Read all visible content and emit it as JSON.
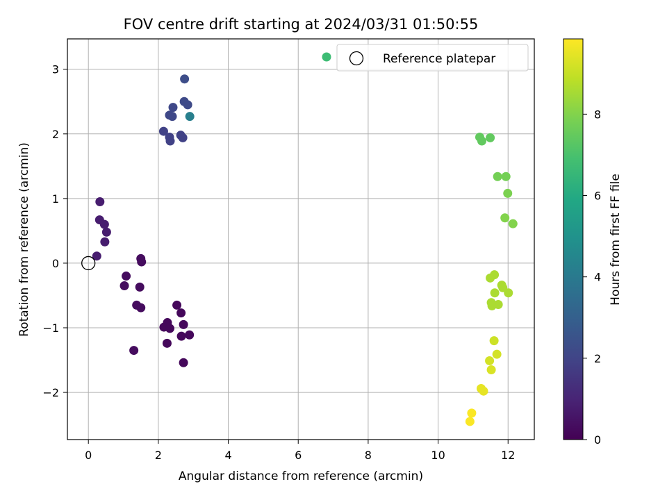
{
  "chart_data": {
    "type": "scatter",
    "title": "FOV centre drift starting at 2024/03/31 01:50:55",
    "xlabel": "Angular distance from reference (arcmin)",
    "ylabel": "Rotation from reference (arcmin)",
    "xlim": [
      -0.6,
      12.75
    ],
    "ylim": [
      -2.73,
      3.47
    ],
    "xticks": [
      0,
      2,
      4,
      6,
      8,
      10,
      12
    ],
    "yticks": [
      -2,
      -1,
      0,
      1,
      2,
      3
    ],
    "xtick_labels": [
      "0",
      "2",
      "4",
      "6",
      "8",
      "10",
      "12"
    ],
    "ytick_labels": [
      "−2",
      "−1",
      "0",
      "1",
      "2",
      "3"
    ],
    "grid": true,
    "colorbar": {
      "label": "Hours from first FF file",
      "range": [
        0,
        9.85
      ],
      "ticks": [
        0,
        2,
        4,
        6,
        8
      ],
      "tick_labels": [
        "0",
        "2",
        "4",
        "6",
        "8"
      ],
      "colormap": "viridis"
    },
    "legend": {
      "position": "top-right",
      "entries": [
        {
          "label": "",
          "marker": "filled-circle",
          "color": "#3dbc74"
        },
        {
          "label": "Reference platepar",
          "marker": "open-circle",
          "color": "#000000"
        }
      ]
    },
    "reference_point": {
      "x": 0,
      "y": 0,
      "label": "Reference platepar"
    },
    "points": [
      {
        "x": 0.33,
        "y": 0.95,
        "hours": 0.8
      },
      {
        "x": 0.32,
        "y": 0.67,
        "hours": 0.8
      },
      {
        "x": 0.46,
        "y": 0.6,
        "hours": 0.8
      },
      {
        "x": 0.52,
        "y": 0.48,
        "hours": 0.8
      },
      {
        "x": 0.47,
        "y": 0.33,
        "hours": 0.8
      },
      {
        "x": 0.24,
        "y": 0.11,
        "hours": 0.8
      },
      {
        "x": 1.5,
        "y": 0.07,
        "hours": 0.3
      },
      {
        "x": 1.52,
        "y": 0.02,
        "hours": 0.3
      },
      {
        "x": 1.08,
        "y": -0.2,
        "hours": 0.3
      },
      {
        "x": 1.03,
        "y": -0.35,
        "hours": 0.3
      },
      {
        "x": 1.47,
        "y": -0.37,
        "hours": 0.3
      },
      {
        "x": 1.38,
        "y": -0.65,
        "hours": 0.3
      },
      {
        "x": 1.5,
        "y": -0.69,
        "hours": 0.3
      },
      {
        "x": 1.3,
        "y": -1.35,
        "hours": 0.3
      },
      {
        "x": 2.53,
        "y": -0.65,
        "hours": 0.2
      },
      {
        "x": 2.65,
        "y": -0.77,
        "hours": 0.2
      },
      {
        "x": 2.26,
        "y": -0.92,
        "hours": 0.2
      },
      {
        "x": 2.16,
        "y": -0.99,
        "hours": 0.2
      },
      {
        "x": 2.33,
        "y": -1.01,
        "hours": 0.2
      },
      {
        "x": 2.72,
        "y": -0.95,
        "hours": 0.2
      },
      {
        "x": 2.66,
        "y": -1.13,
        "hours": 0.2
      },
      {
        "x": 2.89,
        "y": -1.11,
        "hours": 0.2
      },
      {
        "x": 2.25,
        "y": -1.24,
        "hours": 0.2
      },
      {
        "x": 2.72,
        "y": -1.54,
        "hours": 0.2
      },
      {
        "x": 2.75,
        "y": 2.85,
        "hours": 2.3
      },
      {
        "x": 2.74,
        "y": 2.5,
        "hours": 2.2
      },
      {
        "x": 2.84,
        "y": 2.45,
        "hours": 2.2
      },
      {
        "x": 2.42,
        "y": 2.41,
        "hours": 2.1
      },
      {
        "x": 2.32,
        "y": 2.29,
        "hours": 2.1
      },
      {
        "x": 2.4,
        "y": 2.27,
        "hours": 2.1
      },
      {
        "x": 2.9,
        "y": 2.27,
        "hours": 4.2
      },
      {
        "x": 2.15,
        "y": 2.04,
        "hours": 1.9
      },
      {
        "x": 2.32,
        "y": 1.95,
        "hours": 1.9
      },
      {
        "x": 2.34,
        "y": 1.89,
        "hours": 1.9
      },
      {
        "x": 2.64,
        "y": 1.98,
        "hours": 1.9
      },
      {
        "x": 2.7,
        "y": 1.94,
        "hours": 1.9
      },
      {
        "x": 11.19,
        "y": 1.95,
        "hours": 7.45
      },
      {
        "x": 11.25,
        "y": 1.89,
        "hours": 7.45
      },
      {
        "x": 11.49,
        "y": 1.94,
        "hours": 7.45
      },
      {
        "x": 11.7,
        "y": 1.34,
        "hours": 7.75
      },
      {
        "x": 11.94,
        "y": 1.34,
        "hours": 7.75
      },
      {
        "x": 11.99,
        "y": 1.08,
        "hours": 7.9
      },
      {
        "x": 11.91,
        "y": 0.7,
        "hours": 8.0
      },
      {
        "x": 12.14,
        "y": 0.61,
        "hours": 8.0
      },
      {
        "x": 11.61,
        "y": -0.18,
        "hours": 8.6
      },
      {
        "x": 11.49,
        "y": -0.23,
        "hours": 8.6
      },
      {
        "x": 11.82,
        "y": -0.34,
        "hours": 8.6
      },
      {
        "x": 11.85,
        "y": -0.38,
        "hours": 8.6
      },
      {
        "x": 11.62,
        "y": -0.46,
        "hours": 8.6
      },
      {
        "x": 12.01,
        "y": -0.46,
        "hours": 8.6
      },
      {
        "x": 11.52,
        "y": -0.61,
        "hours": 8.6
      },
      {
        "x": 11.72,
        "y": -0.64,
        "hours": 8.6
      },
      {
        "x": 11.54,
        "y": -0.66,
        "hours": 8.6
      },
      {
        "x": 11.6,
        "y": -1.2,
        "hours": 9.1
      },
      {
        "x": 11.68,
        "y": -1.41,
        "hours": 9.2
      },
      {
        "x": 11.47,
        "y": -1.51,
        "hours": 9.2
      },
      {
        "x": 11.52,
        "y": -1.65,
        "hours": 9.3
      },
      {
        "x": 11.23,
        "y": -1.94,
        "hours": 9.5
      },
      {
        "x": 11.3,
        "y": -1.98,
        "hours": 9.5
      },
      {
        "x": 10.96,
        "y": -2.32,
        "hours": 9.8
      },
      {
        "x": 10.91,
        "y": -2.45,
        "hours": 9.8
      }
    ]
  }
}
